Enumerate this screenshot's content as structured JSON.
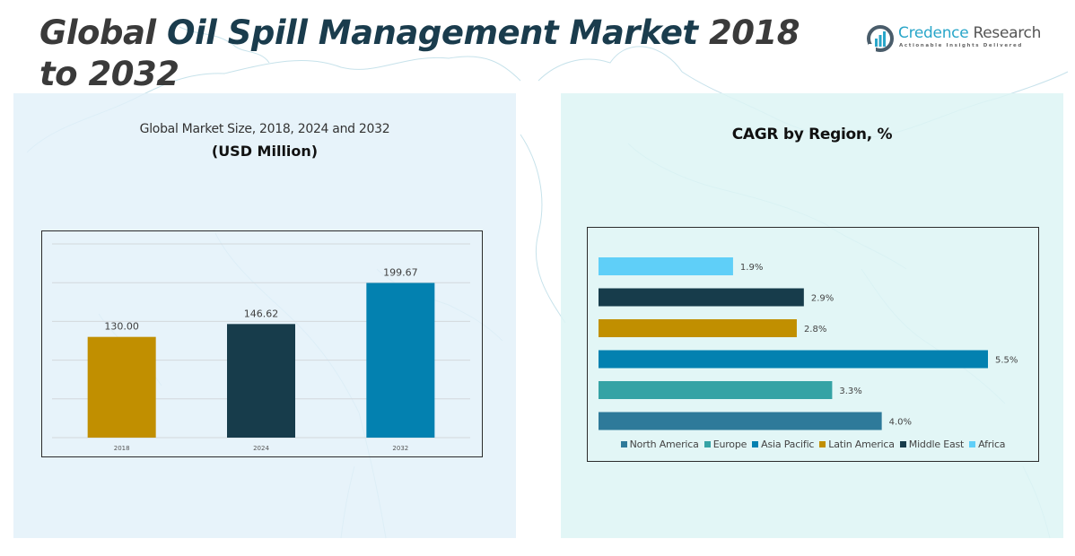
{
  "header": {
    "title_part1": "Global ",
    "title_part2": "Oil Spill Management Market",
    "title_part3": " 2018 to 2032"
  },
  "logo": {
    "name_part1": "Credence",
    "name_part2": " Research",
    "tagline": "Actionable Insights Delivered",
    "icon": "bar-chart-circle-icon"
  },
  "colors": {
    "gold": "#c18f00",
    "navy": "#173c4b",
    "blue": "#0381b0",
    "teal": "#35a3a5",
    "steel": "#2e7a9a",
    "sky": "#5fcff8"
  },
  "chart_data": [
    {
      "type": "bar",
      "title": "Global Market Size, 2018, 2024 and 2032",
      "subtitle": "(USD Million)",
      "categories": [
        "2018",
        "2024",
        "2032"
      ],
      "values": [
        130.0,
        146.62,
        199.67
      ],
      "data_labels": [
        "130.00",
        "146.62",
        "199.67"
      ],
      "bar_colors": [
        "#c18f00",
        "#173c4b",
        "#0381b0"
      ],
      "xlabel": "",
      "ylabel": "",
      "ylim": [
        0,
        250
      ],
      "gridline_step": 50,
      "grid": true,
      "y_tick_labels_shown": false
    },
    {
      "type": "bar",
      "orientation": "horizontal",
      "title": "CAGR by Region, %",
      "categories": [
        "Africa",
        "Middle East",
        "Latin America",
        "Asia Pacific",
        "Europe",
        "North America"
      ],
      "values": [
        1.9,
        2.9,
        2.8,
        5.5,
        3.3,
        4.0
      ],
      "data_labels": [
        "1.9%",
        "2.9%",
        "2.8%",
        "5.5%",
        "3.3%",
        "4.0%"
      ],
      "bar_colors": [
        "#5fcff8",
        "#173c4b",
        "#c18f00",
        "#0381b0",
        "#35a3a5",
        "#2e7a9a"
      ],
      "xlim": [
        0,
        5.5
      ],
      "grid": false,
      "legend": {
        "placement": "bottom",
        "entries": [
          {
            "label": "North America",
            "color": "#2e7a9a"
          },
          {
            "label": "Europe",
            "color": "#35a3a5"
          },
          {
            "label": "Asia Pacific",
            "color": "#0381b0"
          },
          {
            "label": "Latin America",
            "color": "#c18f00"
          },
          {
            "label": "Middle East",
            "color": "#173c4b"
          },
          {
            "label": "Africa",
            "color": "#5fcff8"
          }
        ]
      }
    }
  ]
}
